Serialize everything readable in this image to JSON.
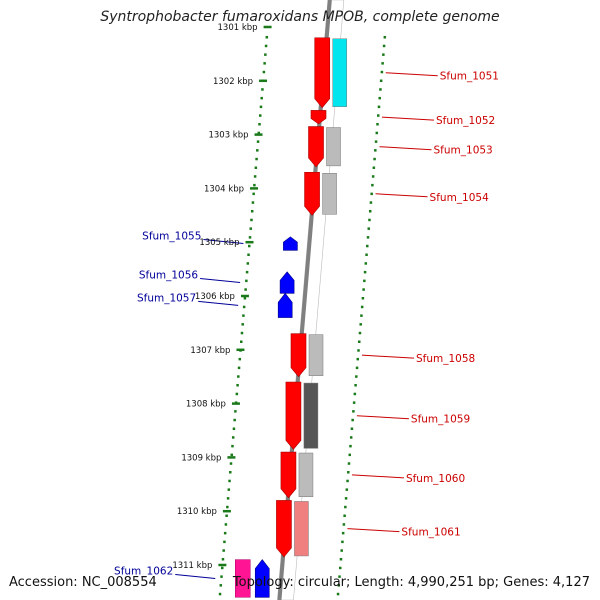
{
  "title": "Syntrophobacter fumaroxidans MPOB, complete genome",
  "footer": {
    "accession": "Accession: NC_008554",
    "topology": "Topology: circular; Length: 4,990,251 bp; Genes: 4,127"
  },
  "colors": {
    "backbone": "#808080",
    "ticks": "#1a7a1a",
    "forward_label": "#cc0000",
    "reverse_label": "#000099"
  },
  "scale": {
    "unit": "kbp",
    "labels": [
      "1301 kbp",
      "1302 kbp",
      "1303 kbp",
      "1304 kbp",
      "1305 kbp",
      "1306 kbp",
      "1307 kbp",
      "1308 kbp",
      "1309 kbp",
      "1310 kbp",
      "1311 kbp"
    ]
  },
  "forward_genes": [
    {
      "label": "Sfum_1051",
      "start_kbp": 1301.2,
      "end_kbp": 1302.5,
      "color": "#ff0000",
      "partner_color": "#00e5ee"
    },
    {
      "label": "Sfum_1052",
      "start_kbp": 1302.55,
      "end_kbp": 1302.8,
      "color": "#ff0000",
      "partner_color": ""
    },
    {
      "label": "Sfum_1053",
      "start_kbp": 1302.85,
      "end_kbp": 1303.6,
      "color": "#ff0000",
      "partner_color": "#bbbbbb"
    },
    {
      "label": "Sfum_1054",
      "start_kbp": 1303.7,
      "end_kbp": 1304.5,
      "color": "#ff0000",
      "partner_color": "#bbbbbb"
    },
    {
      "label": "Sfum_1058",
      "start_kbp": 1306.7,
      "end_kbp": 1307.5,
      "color": "#ff0000",
      "partner_color": "#bbbbbb"
    },
    {
      "label": "Sfum_1059",
      "start_kbp": 1307.6,
      "end_kbp": 1308.85,
      "color": "#ff0000",
      "partner_color": "#555555"
    },
    {
      "label": "Sfum_1060",
      "start_kbp": 1308.9,
      "end_kbp": 1309.75,
      "color": "#ff0000",
      "partner_color": "#bbbbbb"
    },
    {
      "label": "Sfum_1061",
      "start_kbp": 1309.8,
      "end_kbp": 1310.85,
      "color": "#ff0000",
      "partner_color": "#f08080"
    }
  ],
  "reverse_genes": [
    {
      "label": "Sfum_1055",
      "start_kbp": 1304.9,
      "end_kbp": 1305.15,
      "color": "#0000ff",
      "partner_color": ""
    },
    {
      "label": "Sfum_1056",
      "start_kbp": 1305.55,
      "end_kbp": 1305.95,
      "color": "#0000ff",
      "partner_color": ""
    },
    {
      "label": "Sfum_1057",
      "start_kbp": 1305.95,
      "end_kbp": 1306.4,
      "color": "#0000ff",
      "partner_color": ""
    },
    {
      "label": "Sfum_1062",
      "start_kbp": 1310.9,
      "end_kbp": 1311.6,
      "color": "#0000ff",
      "partner_color": "#ff1493"
    }
  ]
}
